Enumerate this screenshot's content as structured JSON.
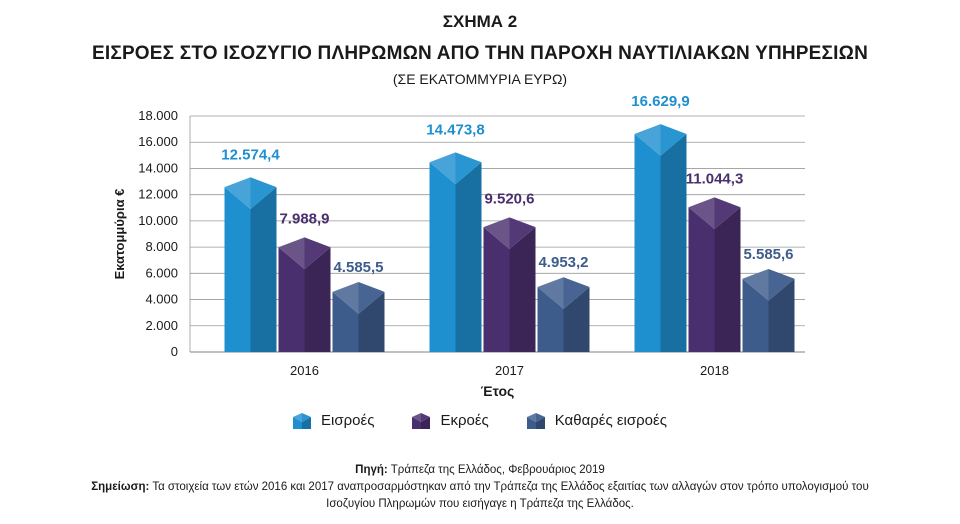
{
  "header": {
    "figure_label": "ΣΧΗΜΑ 2",
    "title": "ΕΙΣΡΟΕΣ ΣΤΟ ΙΣΟΖΥΓΙΟ ΠΛΗΡΩΜΩΝ ΑΠΟ ΤΗΝ ΠΑΡΟΧΗ ΝΑΥΤΙΛΙΑΚΩΝ ΥΠΗΡΕΣΙΩΝ",
    "subtitle": "(ΣΕ ΕΚΑΤΟΜΜΥΡΙΑ ΕΥΡΩ)"
  },
  "chart_data": {
    "type": "bar",
    "categories": [
      "2016",
      "2017",
      "2018"
    ],
    "series": [
      {
        "name": "Εισροές",
        "values": [
          12574.4,
          14473.8,
          16629.9
        ],
        "labels": [
          "12.574,4",
          "14.473,8",
          "16.629,9"
        ],
        "color": "#1e8fcf",
        "label_color": "#1e8fcf"
      },
      {
        "name": "Εκροές",
        "values": [
          7988.9,
          9520.6,
          11044.3
        ],
        "labels": [
          "7.988,9",
          "9.520,6",
          "11.044,3"
        ],
        "color": "#4a2f6e",
        "label_color": "#4a2f6e"
      },
      {
        "name": "Καθαρές εισροές",
        "values": [
          4585.5,
          4953.2,
          5585.6
        ],
        "labels": [
          "4.585,5",
          "4.953,2",
          "5.585,6"
        ],
        "color": "#3d5c8c",
        "label_color": "#3d5c8c"
      }
    ],
    "ylabel": "Εκατομμύρια €",
    "xlabel": "Έτος",
    "ylim": [
      0,
      18000
    ],
    "yticks": [
      0,
      2000,
      4000,
      6000,
      8000,
      10000,
      12000,
      14000,
      16000,
      18000
    ],
    "ytick_labels": [
      "0",
      "2.000",
      "4.000",
      "6.000",
      "8.000",
      "10.000",
      "12.000",
      "14.000",
      "16.000",
      "18.000"
    ],
    "grid": true,
    "legend_position": "bottom"
  },
  "footer": {
    "source_label": "Πηγή:",
    "source_text": "Τράπεζα της Ελλάδος, Φεβρουάριος 2019",
    "note_label": "Σημείωση:",
    "note_text_1": "Τα στοιχεία των ετών 2016 και 2017 αναπροσαρμόστηκαν από την Τράπεζα της Ελλάδος εξαιτίας των αλλαγών στον τρόπο υπολογισμού του",
    "note_text_2": "Ισοζυγίου Πληρωμών που εισήγαγε η Τράπεζα της Ελλάδος."
  }
}
